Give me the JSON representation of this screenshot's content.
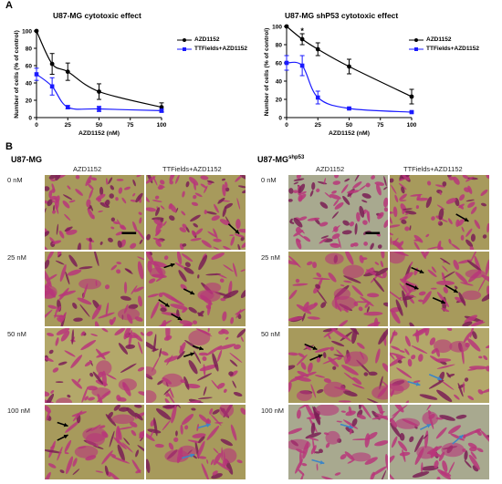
{
  "panels": {
    "a": "A",
    "b": "B"
  },
  "chart_data": [
    {
      "type": "line",
      "title": "U87-MG cytotoxic effect",
      "xlabel": "AZD1152 (nM)",
      "ylabel": "Number of cells (% of control)",
      "xlim": [
        0,
        100
      ],
      "ylim": [
        0,
        100
      ],
      "xticks": [
        "0",
        "25",
        "50",
        "75",
        "100"
      ],
      "yticks": [
        "0",
        "20",
        "40",
        "60",
        "80",
        "100"
      ],
      "legend_position": "top-right",
      "series": [
        {
          "name": "AZD1152",
          "color": "#000000",
          "marker": "circle",
          "x": [
            0,
            12.5,
            25,
            50,
            100
          ],
          "y": [
            100,
            62,
            53,
            30,
            12
          ],
          "err": [
            0,
            12,
            10,
            9,
            5
          ]
        },
        {
          "name": "TTFields+AZD1152",
          "color": "#1a1aff",
          "marker": "square",
          "x": [
            0,
            12.5,
            25,
            50,
            100
          ],
          "y": [
            50,
            36,
            12,
            10,
            8
          ],
          "err": [
            7,
            10,
            2,
            3,
            2
          ]
        }
      ]
    },
    {
      "type": "line",
      "title": "U87-MG shP53 cytotoxic effect",
      "xlabel": "AZD1152 (nM)",
      "ylabel": "Number of cells (% of control)",
      "xlim": [
        0,
        100
      ],
      "ylim": [
        0,
        100
      ],
      "xticks": [
        "0",
        "25",
        "50",
        "75",
        "100"
      ],
      "yticks": [
        "0",
        "20",
        "40",
        "60",
        "80",
        "100"
      ],
      "legend_position": "top-right",
      "annotation": "*",
      "series": [
        {
          "name": "AZD1152",
          "color": "#000000",
          "marker": "circle",
          "x": [
            0,
            12.5,
            25,
            50,
            100
          ],
          "y": [
            100,
            86,
            75,
            56,
            23
          ],
          "err": [
            0,
            6,
            7,
            8,
            8
          ]
        },
        {
          "name": "TTFields+AZD1152",
          "color": "#1a1aff",
          "marker": "square",
          "x": [
            0,
            12.5,
            25,
            50,
            100
          ],
          "y": [
            60,
            57,
            22,
            10,
            6
          ],
          "err": [
            8,
            11,
            7,
            1,
            1
          ]
        }
      ]
    }
  ],
  "grid_left": {
    "title": "U87-MG",
    "title_sup": "",
    "col_a": "AZD1152",
    "col_b": "TTFields+AZD1152",
    "rows": [
      "0 nM",
      "25 nM",
      "50 nM",
      "100 nM"
    ]
  },
  "grid_right": {
    "title": "U87-MG",
    "title_sup": "shp53",
    "col_a": "AZD1152",
    "col_b": "TTFields+AZD1152",
    "rows": [
      "0 nM",
      "25 nM",
      "50 nM",
      "100 nM"
    ]
  },
  "colors": {
    "bg_olive": "#a79a5c",
    "bg_olive_light": "#b3a86a",
    "bg_gray": "#a8a98f",
    "cell_magenta": "#b8367a",
    "cell_dark": "#7a1f55",
    "arrow_black": "#000000",
    "arrow_blue": "#3d86c6"
  }
}
